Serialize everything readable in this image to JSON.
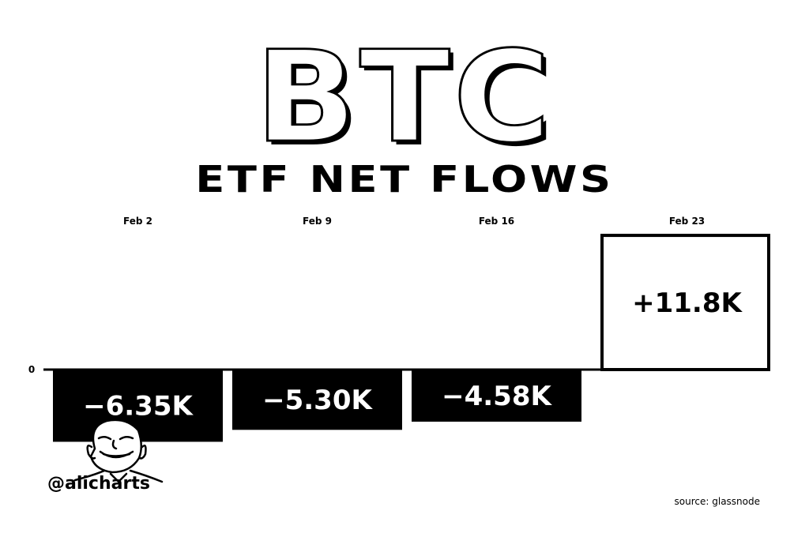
{
  "chart_data": {
    "type": "bar",
    "title": "BTC",
    "subtitle": "ETF NET FLOWS",
    "categories": [
      "Feb 2",
      "Feb 9",
      "Feb 16",
      "Feb 23"
    ],
    "values": [
      -6350,
      -5300,
      -4580,
      11800
    ],
    "data_labels": [
      "−6.35K",
      "−5.30K",
      "−4.58K",
      "+11.8K"
    ],
    "y_tick_labels": [
      "0"
    ],
    "grid": false,
    "colors": {
      "negative": "#000000",
      "positive": "#ffffff",
      "outline": "#000000"
    }
  },
  "credit": {
    "handle": "@alicharts",
    "source": "source: glassnode"
  }
}
